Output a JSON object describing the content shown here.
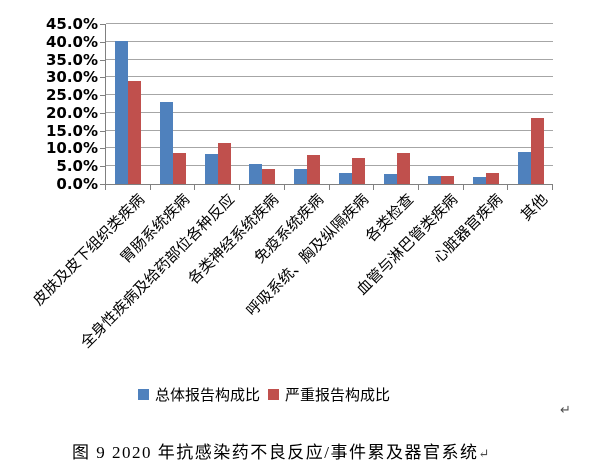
{
  "chart_data": {
    "type": "bar",
    "title": "",
    "categories": [
      "皮肤及皮下组织类疾病",
      "胃肠系统疾病",
      "全身性疾病及给药部位各种反应",
      "各类神经系统疾病",
      "免疫系统疾病",
      "呼吸系统、胸及纵隔疾病",
      "各类检查",
      "血管与淋巴管类疾病",
      "心脏器官疾病",
      "其他"
    ],
    "series": [
      {
        "name": "总体报告构成比",
        "color": "#4F81BD",
        "values": [
          40.2,
          23.1,
          8.5,
          5.7,
          4.3,
          3.1,
          2.7,
          2.2,
          1.9,
          9.0
        ]
      },
      {
        "name": "严重报告构成比",
        "color": "#C0504D",
        "values": [
          28.9,
          8.6,
          11.4,
          4.3,
          8.1,
          7.2,
          8.6,
          2.3,
          3.1,
          18.5
        ]
      }
    ],
    "ylim": [
      0,
      45
    ],
    "ytick_step": 5,
    "ytick_labels": [
      "0.0%",
      "5.0%",
      "10.0%",
      "15.0%",
      "20.0%",
      "25.0%",
      "30.0%",
      "35.0%",
      "40.0%",
      "45.0%"
    ],
    "xlabel": "",
    "ylabel": "",
    "grid": true,
    "legend_position": "bottom"
  },
  "legend": {
    "items": [
      {
        "label": "总体报告构成比",
        "color": "#4F81BD"
      },
      {
        "label": "严重报告构成比",
        "color": "#C0504D"
      }
    ]
  },
  "caption": {
    "text": "图 9  2020 年抗感染药不良反应/事件累及器官系统",
    "return_mark": "↵"
  },
  "stray_return_mark": "↵",
  "colors": {
    "series1": "#4F81BD",
    "series2": "#C0504D",
    "gridline": "#A6A6A6",
    "axis": "#808080",
    "text": "#000000",
    "return_mark": "#4D4D4D",
    "background": "#FFFFFF"
  }
}
